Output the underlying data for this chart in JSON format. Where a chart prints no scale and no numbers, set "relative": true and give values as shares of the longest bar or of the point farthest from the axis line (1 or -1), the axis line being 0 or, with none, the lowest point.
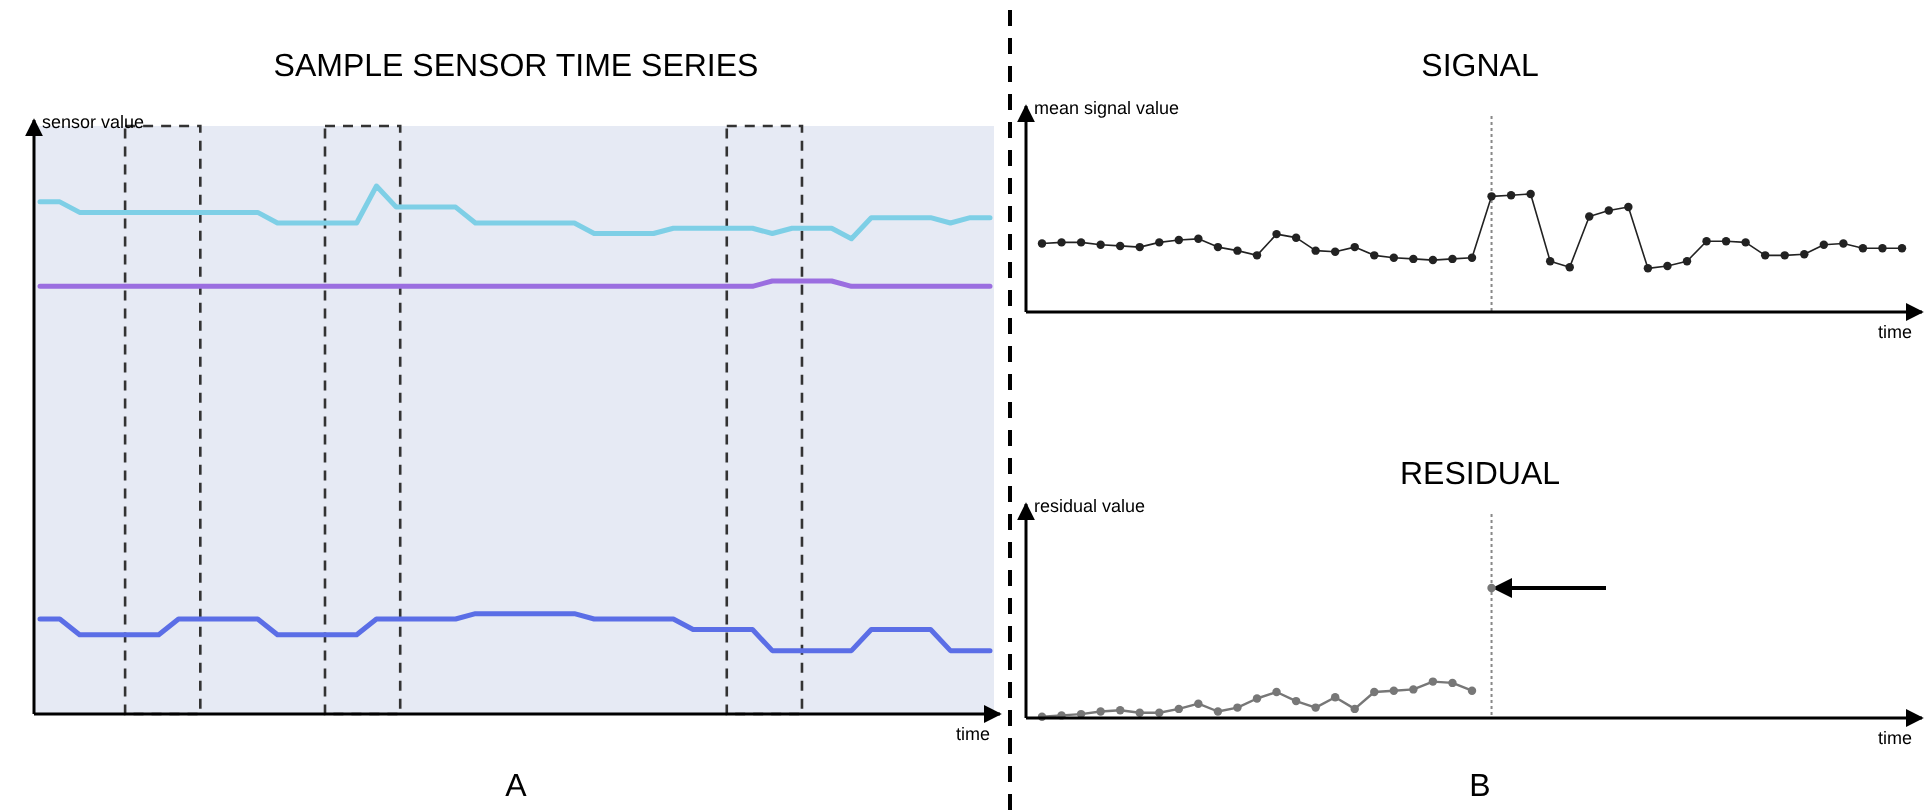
{
  "chart_data": [
    {
      "type": "line",
      "title": "SAMPLE SENSOR TIME SERIES",
      "xlabel": "time",
      "ylabel": "sensor value",
      "relative": true,
      "annotations": [
        "A"
      ],
      "categories": [
        null,
        null,
        null,
        null,
        null,
        null,
        null,
        null,
        null,
        null,
        null,
        null,
        null,
        null,
        null,
        null,
        null,
        null,
        null,
        null,
        null,
        null,
        null,
        null,
        null,
        null,
        null,
        null,
        null,
        null,
        null,
        null,
        null,
        null,
        null,
        null,
        null,
        null,
        null,
        null,
        null,
        null,
        null,
        null,
        null,
        null,
        null,
        null,
        null
      ],
      "series": [
        {
          "color": "#7ecfe6",
          "values": [
            0.97,
            0.97,
            0.95,
            0.95,
            0.95,
            0.95,
            0.95,
            0.95,
            0.95,
            0.95,
            0.95,
            0.95,
            0.93,
            0.93,
            0.93,
            0.93,
            0.93,
            1.0,
            0.96,
            0.96,
            0.96,
            0.96,
            0.93,
            0.93,
            0.93,
            0.93,
            0.93,
            0.93,
            0.91,
            0.91,
            0.91,
            0.91,
            0.92,
            0.92,
            0.92,
            0.92,
            0.92,
            0.91,
            0.92,
            0.92,
            0.92,
            0.9,
            0.94,
            0.94,
            0.94,
            0.94,
            0.93,
            0.94,
            0.94
          ]
        },
        {
          "color": "#9b6ee0",
          "values": [
            0.81,
            0.81,
            0.81,
            0.81,
            0.81,
            0.81,
            0.81,
            0.81,
            0.81,
            0.81,
            0.81,
            0.81,
            0.81,
            0.81,
            0.81,
            0.81,
            0.81,
            0.81,
            0.81,
            0.81,
            0.81,
            0.81,
            0.81,
            0.81,
            0.81,
            0.81,
            0.81,
            0.81,
            0.81,
            0.81,
            0.81,
            0.81,
            0.81,
            0.81,
            0.81,
            0.81,
            0.81,
            0.82,
            0.82,
            0.82,
            0.82,
            0.81,
            0.81,
            0.81,
            0.81,
            0.81,
            0.81,
            0.81,
            0.81
          ]
        },
        {
          "color": "#5b6ee6",
          "values": [
            0.18,
            0.18,
            0.15,
            0.15,
            0.15,
            0.15,
            0.15,
            0.18,
            0.18,
            0.18,
            0.18,
            0.18,
            0.15,
            0.15,
            0.15,
            0.15,
            0.15,
            0.18,
            0.18,
            0.18,
            0.18,
            0.18,
            0.19,
            0.19,
            0.19,
            0.19,
            0.19,
            0.19,
            0.18,
            0.18,
            0.18,
            0.18,
            0.18,
            0.16,
            0.16,
            0.16,
            0.16,
            0.12,
            0.12,
            0.12,
            0.12,
            0.12,
            0.16,
            0.16,
            0.16,
            0.16,
            0.12,
            0.12,
            0.12
          ]
        }
      ]
    },
    {
      "type": "line",
      "title": "SIGNAL",
      "xlabel": "time",
      "ylabel": "mean signal value",
      "relative": true,
      "marker": "circle",
      "annotations": [
        "B"
      ],
      "categories": [
        null,
        null,
        null,
        null,
        null,
        null,
        null,
        null,
        null,
        null,
        null,
        null,
        null,
        null,
        null,
        null,
        null,
        null,
        null,
        null,
        null,
        null,
        null,
        null,
        null,
        null,
        null,
        null,
        null,
        null,
        null,
        null,
        null,
        null,
        null,
        null,
        null,
        null,
        null,
        null,
        null,
        null,
        null,
        null,
        null
      ],
      "series": [
        {
          "color": "#222222",
          "values": [
            0.58,
            0.59,
            0.59,
            0.57,
            0.56,
            0.55,
            0.59,
            0.61,
            0.62,
            0.55,
            0.52,
            0.48,
            0.66,
            0.63,
            0.52,
            0.51,
            0.55,
            0.48,
            0.46,
            0.45,
            0.44,
            0.45,
            0.46,
            0.98,
            0.99,
            1.0,
            0.43,
            0.38,
            0.81,
            0.86,
            0.89,
            0.37,
            0.39,
            0.43,
            0.6,
            0.6,
            0.59,
            0.48,
            0.48,
            0.49,
            0.57,
            0.58,
            0.54,
            0.54,
            0.54
          ]
        }
      ]
    },
    {
      "type": "line",
      "title": "RESIDUAL",
      "xlabel": "time",
      "ylabel": "residual value",
      "relative": true,
      "marker": "circle",
      "categories": [
        null,
        null,
        null,
        null,
        null,
        null,
        null,
        null,
        null,
        null,
        null,
        null,
        null,
        null,
        null,
        null,
        null,
        null,
        null,
        null,
        null,
        null,
        null,
        null,
        null,
        null,
        null,
        null,
        null,
        null,
        null,
        null,
        null,
        null,
        null,
        null,
        null,
        null,
        null,
        null,
        null,
        null,
        null,
        null,
        null
      ],
      "series": [
        {
          "color": "#777777",
          "values": [
            0.01,
            0.02,
            0.03,
            0.05,
            0.06,
            0.04,
            0.04,
            0.07,
            0.11,
            0.05,
            0.08,
            0.15,
            0.2,
            0.13,
            0.08,
            0.16,
            0.07,
            0.2,
            0.21,
            0.22,
            0.28,
            0.27,
            0.21,
            null,
            null,
            null,
            null,
            null,
            null,
            null,
            null,
            null,
            null,
            null,
            null,
            null,
            null,
            null,
            null,
            null,
            null,
            null,
            null,
            null,
            null
          ]
        },
        {
          "type": "scatter",
          "color": "#777777",
          "values": [
            null,
            null,
            null,
            null,
            null,
            null,
            null,
            null,
            null,
            null,
            null,
            null,
            null,
            null,
            null,
            null,
            null,
            null,
            null,
            null,
            null,
            null,
            null,
            1.0,
            null,
            null,
            null,
            null,
            null,
            null,
            null,
            null,
            null,
            null,
            null,
            null,
            null,
            null,
            null,
            null,
            null,
            null,
            null,
            null,
            null
          ]
        }
      ]
    }
  ]
}
